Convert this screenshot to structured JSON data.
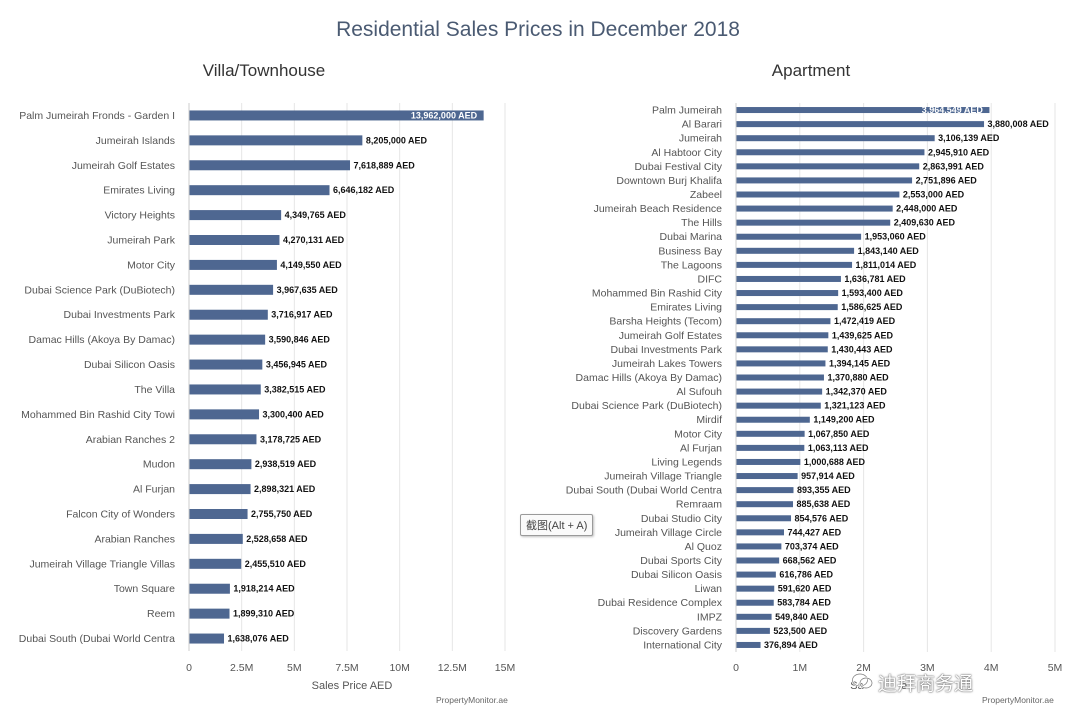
{
  "title": "Residential Sales Prices in December 2018",
  "credit": "PropertyMonitor.ae",
  "tooltip": "截图(Alt + A)",
  "watermark": "迪拜商务通",
  "colors": {
    "bar": "#4e6791",
    "grid": "#e6e6e6",
    "title": "#4a5a72"
  },
  "chart_data": [
    {
      "type": "bar",
      "orientation": "horizontal",
      "title": "Villa/Townhouse",
      "xlabel": "Sales Price AED",
      "xlim": [
        0,
        15000000
      ],
      "ticks": [
        0,
        2500000,
        5000000,
        7500000,
        10000000,
        12500000,
        15000000
      ],
      "tick_labels": [
        "0",
        "2.5M",
        "5M",
        "7.5M",
        "10M",
        "12.5M",
        "15M"
      ],
      "categories": [
        "Palm Jumeirah Fronds - Garden I",
        "Jumeirah Islands",
        "Jumeirah Golf Estates",
        "Emirates Living",
        "Victory Heights",
        "Jumeirah Park",
        "Motor City",
        "Dubai Science Park (DuBiotech)",
        "Dubai Investments Park",
        "Damac Hills (Akoya By Damac)",
        "Dubai Silicon Oasis",
        "The Villa",
        "Mohammed Bin Rashid City Towi",
        "Arabian Ranches 2",
        "Mudon",
        "Al Furjan",
        "Falcon City of Wonders",
        "Arabian Ranches",
        "Jumeirah Village Triangle Villas",
        "Town Square",
        "Reem",
        "Dubai South (Dubai World Centra"
      ],
      "values": [
        13962000,
        8205000,
        7618889,
        6646182,
        4349765,
        4270131,
        4149550,
        3967635,
        3716917,
        3590846,
        3456945,
        3382515,
        3300400,
        3178725,
        2938519,
        2898321,
        2755750,
        2528658,
        2455510,
        1918214,
        1899310,
        1638076
      ],
      "labels": [
        "13,962,000 AED",
        "8,205,000 AED",
        "7,618,889 AED",
        "6,646,182 AED",
        "4,349,765 AED",
        "4,270,131 AED",
        "4,149,550 AED",
        "3,967,635 AED",
        "3,716,917 AED",
        "3,590,846 AED",
        "3,456,945 AED",
        "3,382,515 AED",
        "3,300,400 AED",
        "3,178,725 AED",
        "2,938,519 AED",
        "2,898,321 AED",
        "2,755,750 AED",
        "2,528,658 AED",
        "2,455,510 AED",
        "1,918,214 AED",
        "1,899,310 AED",
        "1,638,076 AED"
      ]
    },
    {
      "type": "bar",
      "orientation": "horizontal",
      "title": "Apartment",
      "xlabel": "Sa",
      "xlabel_tail": "e",
      "xlim": [
        0,
        5000000
      ],
      "ticks": [
        0,
        1000000,
        2000000,
        3000000,
        4000000,
        5000000
      ],
      "tick_labels": [
        "0",
        "1M",
        "2M",
        "3M",
        "4M",
        "5M"
      ],
      "categories": [
        "Palm Jumeirah",
        "Al Barari",
        "Jumeirah",
        "Al Habtoor City",
        "Dubai Festival City",
        "Downtown Burj Khalifa",
        "Zabeel",
        "Jumeirah Beach Residence",
        "The Hills",
        "Dubai Marina",
        "Business Bay",
        "The Lagoons",
        "DIFC",
        "Mohammed Bin Rashid City",
        "Emirates Living",
        "Barsha Heights (Tecom)",
        "Jumeirah Golf Estates",
        "Dubai Investments Park",
        "Jumeirah Lakes Towers",
        "Damac Hills (Akoya By Damac)",
        "Al Sufouh",
        "Dubai Science Park (DuBiotech)",
        "Mirdif",
        "Motor City",
        "Al Furjan",
        "Living Legends",
        "Jumeirah Village Triangle",
        "Dubai South (Dubai World Centra",
        "Remraam",
        "Dubai Studio City",
        "Jumeirah Village Circle",
        "Al Quoz",
        "Dubai Sports City",
        "Dubai Silicon Oasis",
        "Liwan",
        "Dubai Residence Complex",
        "IMPZ",
        "Discovery Gardens",
        "International City"
      ],
      "values": [
        3964549,
        3880008,
        3106139,
        2945910,
        2863991,
        2751896,
        2553000,
        2448000,
        2409630,
        1953060,
        1843140,
        1811014,
        1636781,
        1593400,
        1586625,
        1472419,
        1439625,
        1430443,
        1394145,
        1370880,
        1342370,
        1321123,
        1149200,
        1067850,
        1063113,
        1000688,
        957914,
        893355,
        885638,
        854576,
        744427,
        703374,
        668562,
        616786,
        591620,
        583784,
        549840,
        523500,
        376894
      ],
      "labels": [
        "3,964,549 AED",
        "3,880,008 AED",
        "3,106,139 AED",
        "2,945,910 AED",
        "2,863,991 AED",
        "2,751,896 AED",
        "2,553,000 AED",
        "2,448,000 AED",
        "2,409,630 AED",
        "1,953,060 AED",
        "1,843,140 AED",
        "1,811,014 AED",
        "1,636,781 AED",
        "1,593,400 AED",
        "1,586,625 AED",
        "1,472,419 AED",
        "1,439,625 AED",
        "1,430,443 AED",
        "1,394,145 AED",
        "1,370,880 AED",
        "1,342,370 AED",
        "1,321,123 AED",
        "1,149,200 AED",
        "1,067,850 AED",
        "1,063,113 AED",
        "1,000,688 AED",
        "957,914 AED",
        "893,355 AED",
        "885,638 AED",
        "854,576 AED",
        "744,427 AED",
        "703,374 AED",
        "668,562 AED",
        "616,786 AED",
        "591,620 AED",
        "583,784 AED",
        "549,840 AED",
        "523,500 AED",
        "376,894 AED"
      ]
    }
  ]
}
